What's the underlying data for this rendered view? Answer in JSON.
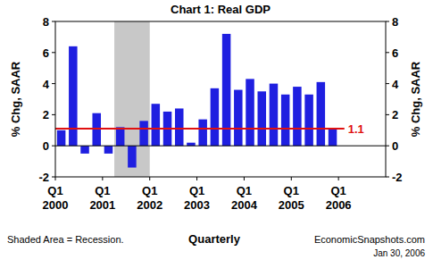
{
  "chart_data": {
    "type": "bar",
    "title": "Chart 1: Real GDP",
    "x_label": "Quarterly",
    "y_label": "% Chg, SAAR",
    "y2_label": "% Chg, SAAR",
    "categories": [
      "Q1 2000",
      null,
      null,
      null,
      "Q1 2001",
      null,
      null,
      null,
      "Q1 2002",
      null,
      null,
      null,
      "Q1 2003",
      null,
      null,
      null,
      "Q1 2004",
      null,
      null,
      null,
      "Q1 2005",
      null,
      null,
      null,
      "Q1 2006",
      null,
      null,
      null
    ],
    "values": [
      1.0,
      6.4,
      -0.5,
      2.1,
      -0.5,
      1.2,
      -1.4,
      1.6,
      2.7,
      2.2,
      2.4,
      0.2,
      1.7,
      3.7,
      7.2,
      3.6,
      4.3,
      3.5,
      4.0,
      3.3,
      3.8,
      3.3,
      4.1,
      1.1,
      null,
      null,
      null,
      null
    ],
    "color": "#1f1fe0",
    "ylim": [
      -2,
      8
    ],
    "yticks": [
      -2,
      0,
      2,
      4,
      6,
      8
    ],
    "grid": false,
    "recession": [
      5,
      8
    ],
    "recession_color": "#c8c8c8",
    "reference_line": {
      "value": 1.1,
      "color": "#e01010"
    },
    "notes": [
      "Shaded Area = Recession.",
      "EconomicSnapshots.com",
      "Jan 30, 2006"
    ]
  }
}
